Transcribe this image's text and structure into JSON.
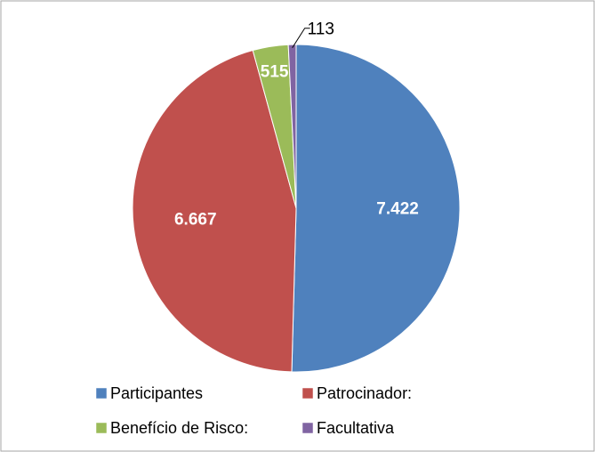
{
  "chart_data": {
    "type": "pie",
    "categories": [
      "Participantes",
      "Patrocinador:",
      "Benefício de Risco:",
      "Facultativa"
    ],
    "values": [
      7422,
      6667,
      515,
      113
    ],
    "value_labels": [
      "7.422",
      "6.667",
      "515",
      "113"
    ],
    "colors": [
      "#4f81bd",
      "#c0504d",
      "#9bbb59",
      "#8064a2"
    ],
    "legend": "bottom"
  }
}
